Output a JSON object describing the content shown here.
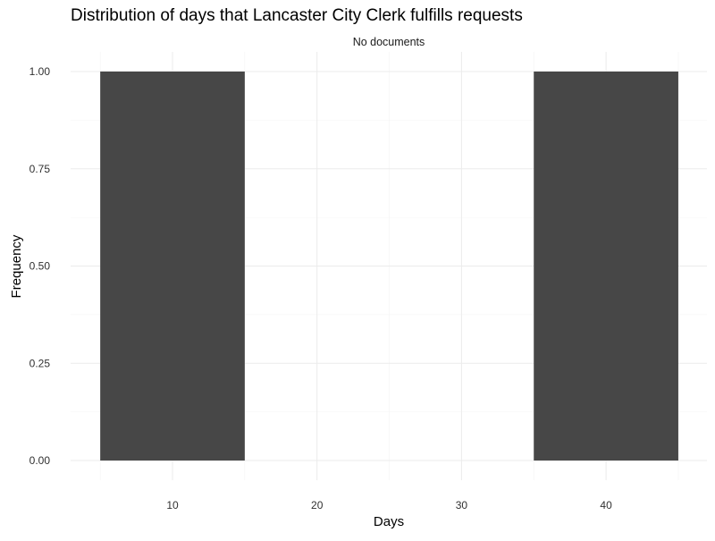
{
  "chart_data": {
    "type": "bar",
    "title": "Distribution of days that Lancaster City Clerk fulfills requests",
    "facet_label": "No documents",
    "xlabel": "Days",
    "ylabel": "Frequency",
    "x_ticks": [
      10,
      20,
      30,
      40
    ],
    "y_ticks": [
      "0.00",
      "0.25",
      "0.50",
      "0.75",
      "1.00"
    ],
    "xlim": [
      0,
      45
    ],
    "ylim": [
      0,
      1
    ],
    "bin_width": 10,
    "bins": [
      {
        "x_start": 5,
        "x_end": 15,
        "value": 1
      },
      {
        "x_start": 15,
        "x_end": 25,
        "value": 0
      },
      {
        "x_start": 25,
        "x_end": 35,
        "value": 0
      },
      {
        "x_start": 35,
        "x_end": 45,
        "value": 1
      }
    ],
    "bar_color": "#474747",
    "grid": true,
    "legend": "none"
  }
}
